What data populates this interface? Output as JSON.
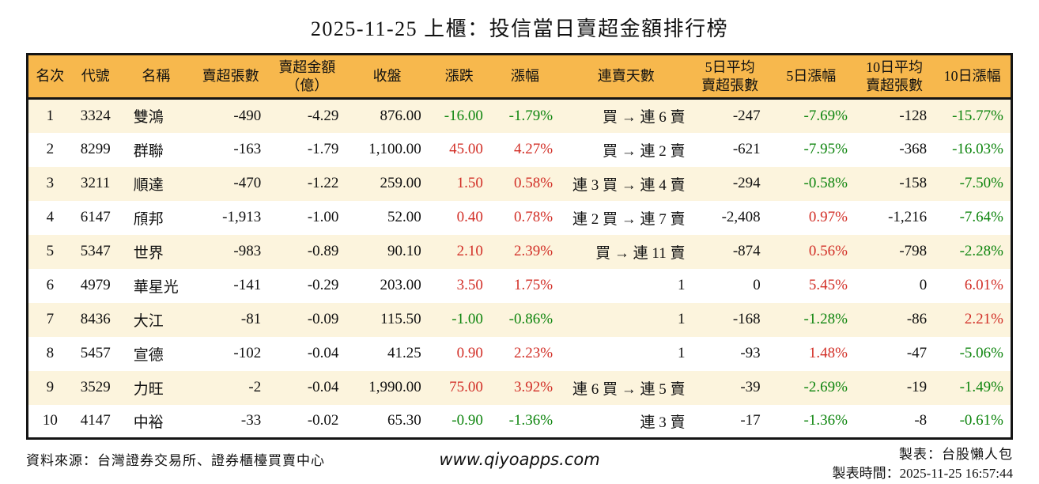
{
  "title": "2025-11-25 上櫃：投信當日賣超金額排行榜",
  "colors": {
    "up": "#d22f27",
    "down": "#0e850e",
    "header_bg": "#f7b84d",
    "row_odd": "#fcf4dd",
    "border": "#141414"
  },
  "table": {
    "columns": [
      {
        "key": "rank",
        "label": "名次",
        "align": "center"
      },
      {
        "key": "code",
        "label": "代號",
        "align": "center"
      },
      {
        "key": "name",
        "label": "名稱",
        "align": "left"
      },
      {
        "key": "sell_qty",
        "label": "賣超張數",
        "align": "right"
      },
      {
        "key": "sell_amt",
        "label": "賣超金額\n（億）",
        "align": "right"
      },
      {
        "key": "close",
        "label": "收盤",
        "align": "right"
      },
      {
        "key": "change",
        "label": "漲跌",
        "align": "right"
      },
      {
        "key": "pct",
        "label": "漲幅",
        "align": "right"
      },
      {
        "key": "streak",
        "label": "連賣天數",
        "align": "right"
      },
      {
        "key": "avg5",
        "label": "5日平均\n賣超張數",
        "align": "right"
      },
      {
        "key": "pct5",
        "label": "5日漲幅",
        "align": "right"
      },
      {
        "key": "avg10",
        "label": "10日平均\n賣超張數",
        "align": "right"
      },
      {
        "key": "pct10",
        "label": "10日漲幅",
        "align": "right"
      }
    ],
    "rows": [
      {
        "rank": "1",
        "code": "3324",
        "name": "雙鴻",
        "sell_qty": "-490",
        "sell_amt": "-4.29",
        "close": "876.00",
        "change": "-16.00",
        "change_dir": "down",
        "pct": "-1.79%",
        "pct_dir": "down",
        "streak": "買 → 連 6 賣",
        "avg5": "-247",
        "pct5": "-7.69%",
        "pct5_dir": "down",
        "avg10": "-128",
        "pct10": "-15.77%",
        "pct10_dir": "down"
      },
      {
        "rank": "2",
        "code": "8299",
        "name": "群聯",
        "sell_qty": "-163",
        "sell_amt": "-1.79",
        "close": "1,100.00",
        "change": "45.00",
        "change_dir": "up",
        "pct": "4.27%",
        "pct_dir": "up",
        "streak": "買 → 連 2 賣",
        "avg5": "-621",
        "pct5": "-7.95%",
        "pct5_dir": "down",
        "avg10": "-368",
        "pct10": "-16.03%",
        "pct10_dir": "down"
      },
      {
        "rank": "3",
        "code": "3211",
        "name": "順達",
        "sell_qty": "-470",
        "sell_amt": "-1.22",
        "close": "259.00",
        "change": "1.50",
        "change_dir": "up",
        "pct": "0.58%",
        "pct_dir": "up",
        "streak": "連 3 買 → 連 4 賣",
        "avg5": "-294",
        "pct5": "-0.58%",
        "pct5_dir": "down",
        "avg10": "-158",
        "pct10": "-7.50%",
        "pct10_dir": "down"
      },
      {
        "rank": "4",
        "code": "6147",
        "name": "頎邦",
        "sell_qty": "-1,913",
        "sell_amt": "-1.00",
        "close": "52.00",
        "change": "0.40",
        "change_dir": "up",
        "pct": "0.78%",
        "pct_dir": "up",
        "streak": "連 2 買 → 連 7 賣",
        "avg5": "-2,408",
        "pct5": "0.97%",
        "pct5_dir": "up",
        "avg10": "-1,216",
        "pct10": "-7.64%",
        "pct10_dir": "down"
      },
      {
        "rank": "5",
        "code": "5347",
        "name": "世界",
        "sell_qty": "-983",
        "sell_amt": "-0.89",
        "close": "90.10",
        "change": "2.10",
        "change_dir": "up",
        "pct": "2.39%",
        "pct_dir": "up",
        "streak": "買 → 連 11 賣",
        "avg5": "-874",
        "pct5": "0.56%",
        "pct5_dir": "up",
        "avg10": "-798",
        "pct10": "-2.28%",
        "pct10_dir": "down"
      },
      {
        "rank": "6",
        "code": "4979",
        "name": "華星光",
        "sell_qty": "-141",
        "sell_amt": "-0.29",
        "close": "203.00",
        "change": "3.50",
        "change_dir": "up",
        "pct": "1.75%",
        "pct_dir": "up",
        "streak": "1",
        "avg5": "0",
        "pct5": "5.45%",
        "pct5_dir": "up",
        "avg10": "0",
        "pct10": "6.01%",
        "pct10_dir": "up"
      },
      {
        "rank": "7",
        "code": "8436",
        "name": "大江",
        "sell_qty": "-81",
        "sell_amt": "-0.09",
        "close": "115.50",
        "change": "-1.00",
        "change_dir": "down",
        "pct": "-0.86%",
        "pct_dir": "down",
        "streak": "1",
        "avg5": "-168",
        "pct5": "-1.28%",
        "pct5_dir": "down",
        "avg10": "-86",
        "pct10": "2.21%",
        "pct10_dir": "up"
      },
      {
        "rank": "8",
        "code": "5457",
        "name": "宣德",
        "sell_qty": "-102",
        "sell_amt": "-0.04",
        "close": "41.25",
        "change": "0.90",
        "change_dir": "up",
        "pct": "2.23%",
        "pct_dir": "up",
        "streak": "1",
        "avg5": "-93",
        "pct5": "1.48%",
        "pct5_dir": "up",
        "avg10": "-47",
        "pct10": "-5.06%",
        "pct10_dir": "down"
      },
      {
        "rank": "9",
        "code": "3529",
        "name": "力旺",
        "sell_qty": "-2",
        "sell_amt": "-0.04",
        "close": "1,990.00",
        "change": "75.00",
        "change_dir": "up",
        "pct": "3.92%",
        "pct_dir": "up",
        "streak": "連 6 買 → 連 5 賣",
        "avg5": "-39",
        "pct5": "-2.69%",
        "pct5_dir": "down",
        "avg10": "-19",
        "pct10": "-1.49%",
        "pct10_dir": "down"
      },
      {
        "rank": "10",
        "code": "4147",
        "name": "中裕",
        "sell_qty": "-33",
        "sell_amt": "-0.02",
        "close": "65.30",
        "change": "-0.90",
        "change_dir": "down",
        "pct": "-1.36%",
        "pct_dir": "down",
        "streak": "連 3 賣",
        "avg5": "-17",
        "pct5": "-1.36%",
        "pct5_dir": "down",
        "avg10": "-8",
        "pct10": "-0.61%",
        "pct10_dir": "down"
      }
    ]
  },
  "footer": {
    "source": "資料來源：台灣證券交易所、證券櫃檯買賣中心",
    "website": "www.qiyoapps.com",
    "author": "製表：台股懶人包",
    "generated": "製表時間：2025-11-25 16:57:44"
  }
}
